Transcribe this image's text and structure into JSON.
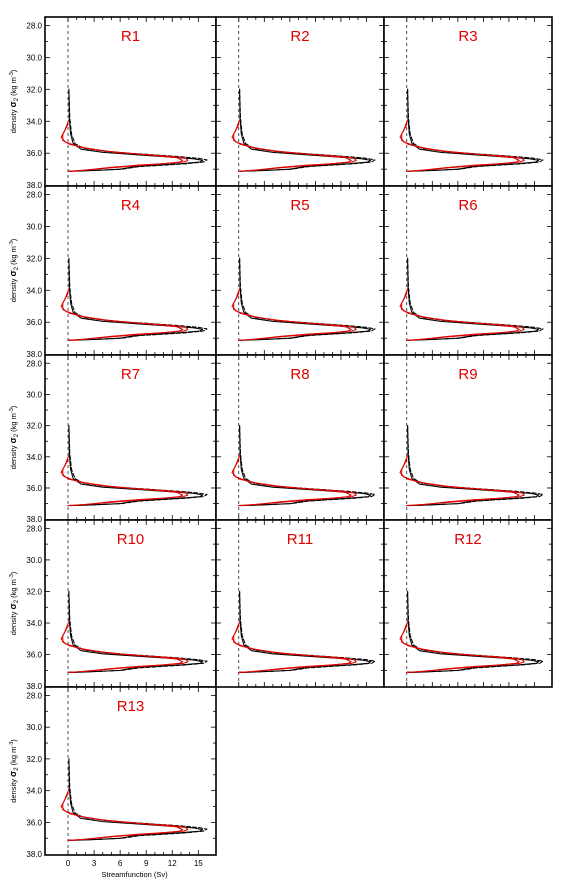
{
  "chart_data": {
    "type": "line",
    "panel_titles": [
      "R1",
      "R2",
      "R3",
      "R4",
      "R5",
      "R6",
      "R7",
      "R8",
      "R9",
      "R10",
      "R11",
      "R12",
      "R13"
    ],
    "panel_title_color": "#e00000",
    "xlabel": "Streamfunction (Sv)",
    "ylabel_parts": [
      "density ",
      "σ",
      "2",
      " (kg m",
      "-3",
      ")"
    ],
    "y_tick_labels": [
      "28.0",
      "30.0",
      "32.0",
      "34.0",
      "36.0",
      "38.0"
    ],
    "x_tick_labels": [
      "0",
      "3",
      "6",
      "9",
      "12",
      "15"
    ],
    "xlim": [
      -1.5,
      16
    ],
    "ylim": [
      38.0,
      28.0
    ],
    "reference_line_x": 0,
    "colors": {
      "black": "#000000",
      "red": "#e00000"
    },
    "series_template": [
      {
        "color": "black",
        "style": "solid",
        "points": [
          [
            0.1,
            32.0
          ],
          [
            0.15,
            33.8
          ],
          [
            0.3,
            34.8
          ],
          [
            0.6,
            35.4
          ],
          [
            1.5,
            35.75
          ],
          [
            4,
            35.95
          ],
          [
            8,
            36.1
          ],
          [
            12,
            36.25
          ],
          [
            14.5,
            36.35
          ],
          [
            15.5,
            36.45
          ],
          [
            15.2,
            36.55
          ],
          [
            13,
            36.65
          ],
          [
            10,
            36.75
          ],
          [
            8,
            36.82
          ],
          [
            7,
            36.9
          ],
          [
            6,
            37.0
          ],
          [
            3,
            37.08
          ],
          [
            1,
            37.12
          ],
          [
            0,
            37.13
          ]
        ]
      },
      {
        "color": "black",
        "style": "dashed",
        "points": [
          [
            0.1,
            32.0
          ],
          [
            0.2,
            33.8
          ],
          [
            0.4,
            34.8
          ],
          [
            0.8,
            35.4
          ],
          [
            1.8,
            35.7
          ],
          [
            4.5,
            35.9
          ],
          [
            8.5,
            36.05
          ],
          [
            12.5,
            36.2
          ],
          [
            15,
            36.32
          ],
          [
            16,
            36.42
          ],
          [
            15.6,
            36.55
          ],
          [
            13.5,
            36.66
          ],
          [
            10.5,
            36.76
          ],
          [
            8.2,
            36.84
          ],
          [
            7.2,
            36.92
          ],
          [
            6.2,
            37.0
          ],
          [
            3.2,
            37.07
          ],
          [
            1.2,
            37.11
          ],
          [
            0,
            37.12
          ]
        ]
      },
      {
        "color": "red",
        "style": "solid",
        "points": [
          [
            0.1,
            33.9
          ],
          [
            -0.4,
            34.6
          ],
          [
            -0.8,
            35.0
          ],
          [
            -0.3,
            35.3
          ],
          [
            1.2,
            35.6
          ],
          [
            4,
            35.85
          ],
          [
            8,
            36.05
          ],
          [
            11.5,
            36.18
          ],
          [
            13.5,
            36.3
          ],
          [
            13.8,
            36.45
          ],
          [
            13.3,
            36.55
          ],
          [
            11,
            36.65
          ],
          [
            8,
            36.75
          ],
          [
            5,
            36.88
          ],
          [
            3,
            37.0
          ],
          [
            1.5,
            37.08
          ],
          [
            0.5,
            37.12
          ],
          [
            0,
            37.13
          ]
        ]
      },
      {
        "color": "red",
        "style": "solid",
        "points": [
          [
            0.0,
            34.2
          ],
          [
            -0.6,
            34.8
          ],
          [
            -0.6,
            35.2
          ],
          [
            0.2,
            35.45
          ],
          [
            2.2,
            35.7
          ],
          [
            5.5,
            35.95
          ],
          [
            9.5,
            36.12
          ],
          [
            12.5,
            36.28
          ],
          [
            13.2,
            36.45
          ],
          [
            12.8,
            36.56
          ],
          [
            10.5,
            36.68
          ],
          [
            7.5,
            36.8
          ],
          [
            4.2,
            36.95
          ],
          [
            2.2,
            37.05
          ],
          [
            0.8,
            37.1
          ],
          [
            0,
            37.12
          ]
        ]
      }
    ]
  }
}
